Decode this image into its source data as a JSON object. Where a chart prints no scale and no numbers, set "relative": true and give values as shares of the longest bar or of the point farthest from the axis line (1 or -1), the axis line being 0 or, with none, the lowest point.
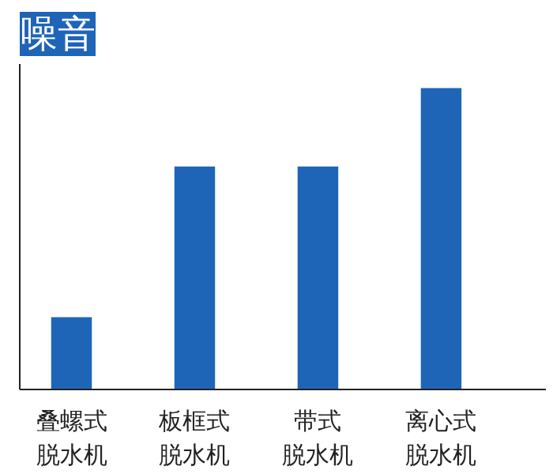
{
  "chart_data": {
    "type": "bar",
    "title": "噪音",
    "relative": true,
    "categories": [
      "叠螺式脱水机",
      "板框式脱水机",
      "带式脱水机",
      "离心式脱水机"
    ],
    "values": [
      0.24,
      0.74,
      0.74,
      1
    ],
    "color": "#1f65b7",
    "grid": false
  }
}
